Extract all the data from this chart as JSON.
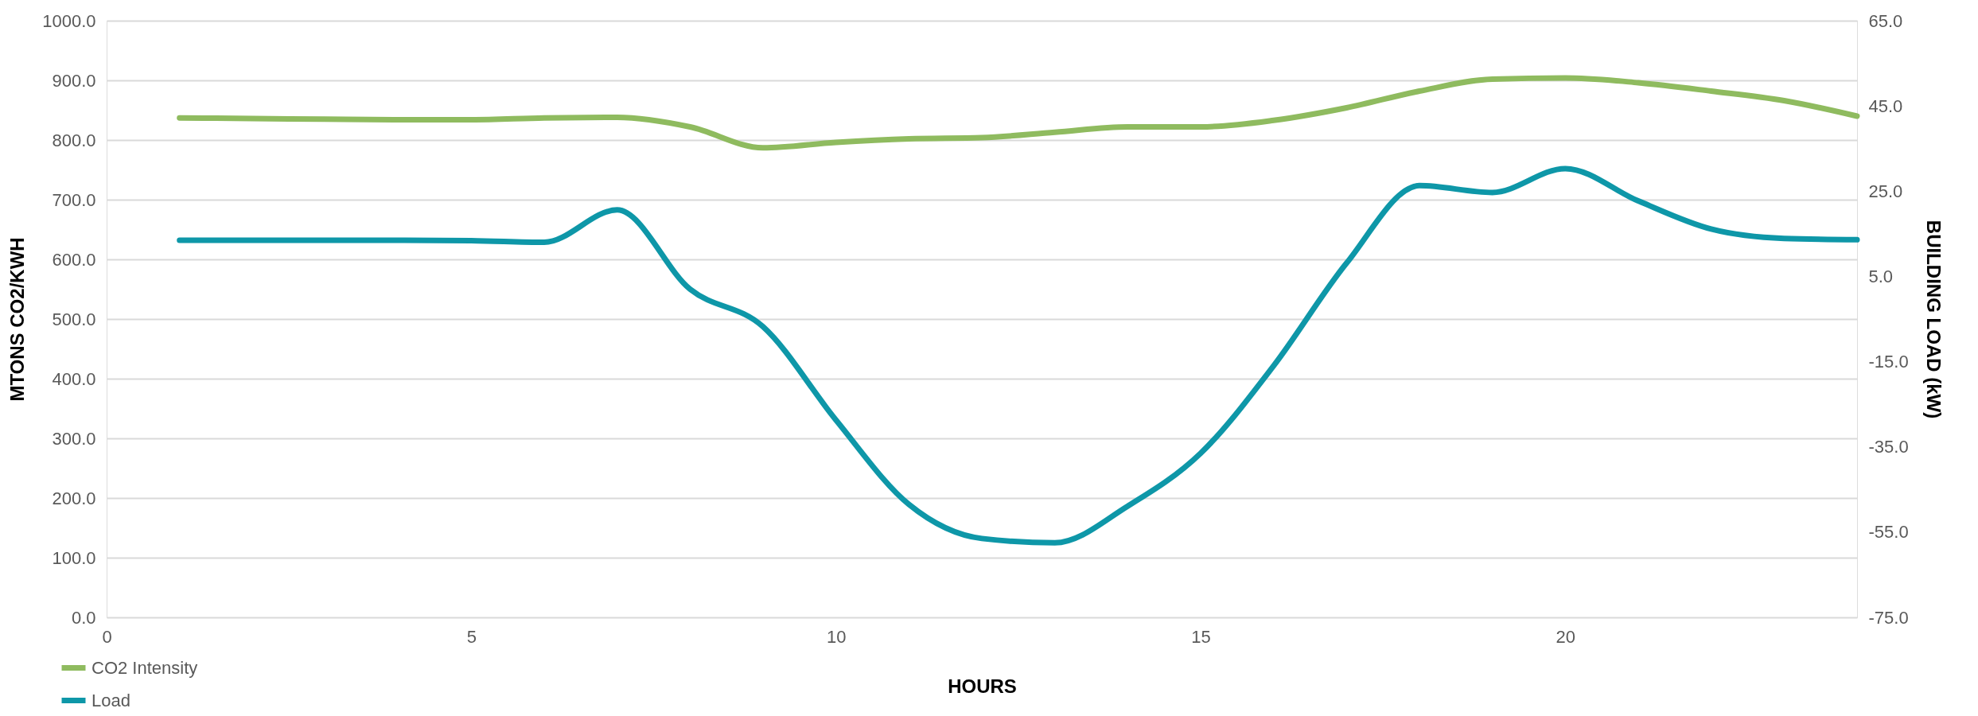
{
  "chart_data": {
    "type": "line",
    "xlabel": "HOURS",
    "ylabel": "MTONS CO2/KWH",
    "y2label": "BUILDING LOAD (kW)",
    "x": [
      1,
      2,
      3,
      4,
      5,
      6,
      7,
      8,
      9,
      10,
      11,
      12,
      13,
      14,
      15,
      16,
      17,
      18,
      19,
      20,
      21,
      22,
      23,
      24
    ],
    "xlim": [
      0,
      24
    ],
    "xticks": [
      0,
      5,
      10,
      15,
      20
    ],
    "ylim": [
      0,
      1000
    ],
    "yticks": [
      {
        "value": 0,
        "label": "0.0"
      },
      {
        "value": 100,
        "label": "100.0"
      },
      {
        "value": 200,
        "label": "200.0"
      },
      {
        "value": 300,
        "label": "300.0"
      },
      {
        "value": 400,
        "label": "400.0"
      },
      {
        "value": 500,
        "label": "500.0"
      },
      {
        "value": 600,
        "label": "600.0"
      },
      {
        "value": 700,
        "label": "700.0"
      },
      {
        "value": 800,
        "label": "800.0"
      },
      {
        "value": 900,
        "label": "900.0"
      },
      {
        "value": 1000,
        "label": "1000.0"
      }
    ],
    "y2lim": [
      -75,
      65
    ],
    "y2ticks": [
      {
        "value": -75,
        "label": "-75.0"
      },
      {
        "value": -55,
        "label": "-55.0"
      },
      {
        "value": -35,
        "label": "-35.0"
      },
      {
        "value": -15,
        "label": "-15.0"
      },
      {
        "value": 5,
        "label": "5.0"
      },
      {
        "value": 25,
        "label": "25.0"
      },
      {
        "value": 45,
        "label": "45.0"
      },
      {
        "value": 65,
        "label": "65.0"
      }
    ],
    "grid": "y",
    "legend": "bottom left",
    "line_style": "solid",
    "series": [
      {
        "name": "CO2 Intensity",
        "color": "#8fbb5f",
        "values": [
          837,
          836,
          835,
          834,
          834,
          837,
          838,
          822,
          787,
          796,
          802,
          804,
          813,
          822,
          822,
          833,
          854,
          882,
          902,
          904,
          896,
          882,
          866,
          840
        ]
      },
      {
        "name": "Load",
        "color": "#0e97a8",
        "axis": "y2",
        "values": [
          13.5,
          13.5,
          13.5,
          13.5,
          13.4,
          13.0,
          20.6,
          2.0,
          -6.8,
          -28.7,
          -48.5,
          -56.5,
          -57.5,
          -48.9,
          -36.5,
          -16.0,
          8.1,
          26.3,
          24.7,
          30.3,
          22.7,
          16.1,
          13.9,
          13.6
        ]
      }
    ]
  }
}
